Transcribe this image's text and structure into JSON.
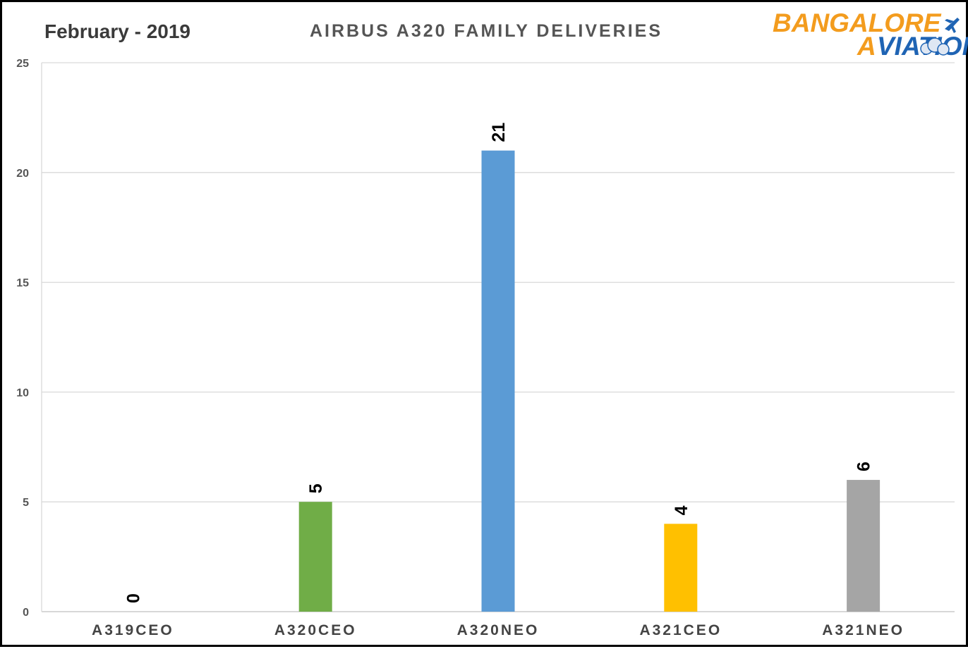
{
  "header": {
    "period": "February  - 2019"
  },
  "logo": {
    "line1": "BANGALORE",
    "line2": "VIATION",
    "accent": "A",
    "colors": {
      "orange": "#f39c1e",
      "blue": "#1f64b4"
    }
  },
  "chart_data": {
    "type": "bar",
    "title": "AIRBUS A320 FAMILY DELIVERIES",
    "xlabel": "",
    "ylabel": "",
    "categories": [
      "A319CEO",
      "A320CEO",
      "A320NEO",
      "A321CEO",
      "A321NEO"
    ],
    "values": [
      0,
      5,
      21,
      4,
      6
    ],
    "data_labels": [
      "0",
      "5",
      "21",
      "4",
      "6"
    ],
    "colors": [
      "#5b9bd5",
      "#70ad47",
      "#5b9bd5",
      "#ffc000",
      "#a5a5a5"
    ],
    "ylim": [
      0,
      25
    ],
    "yticks": [
      0,
      5,
      10,
      15,
      20,
      25
    ],
    "ytick_labels": [
      "0",
      "5",
      "10",
      "15",
      "20",
      "25"
    ],
    "grid": true,
    "legend": "none"
  }
}
